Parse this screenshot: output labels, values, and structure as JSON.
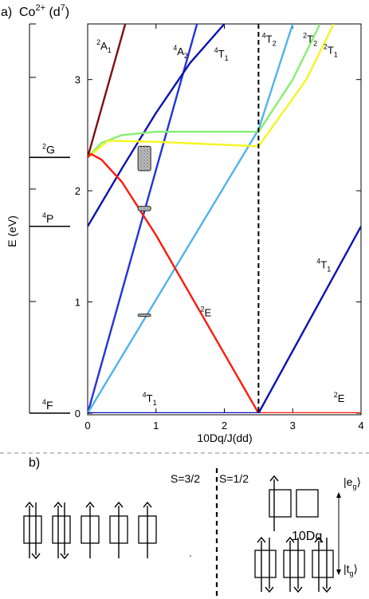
{
  "panel_a_label": "a)",
  "panel_a_title": "Co",
  "panel_a_title_sup": "2+",
  "panel_a_title_config": " (d",
  "panel_a_title_config_sup": "7",
  "panel_a_title_close": ")",
  "free_ion_levels": [
    {
      "name": "2G",
      "sup": "2",
      "base": "G",
      "energy": 2.3
    },
    {
      "name": "4P",
      "sup": "4",
      "base": "P",
      "energy": 1.68
    },
    {
      "name": "4F",
      "sup": "4",
      "base": "F",
      "energy": 0.0
    }
  ],
  "chart_data": {
    "type": "line",
    "title": "",
    "xlabel": "10Dq/J(dd)",
    "ylabel": "E (eV)",
    "xlim": [
      0,
      4
    ],
    "ylim": [
      0,
      3.5
    ],
    "xticks": [
      "0",
      "1",
      "2",
      "3",
      "4"
    ],
    "yticks": [
      "0",
      "1",
      "2",
      "3"
    ],
    "crossover_x": 2.5,
    "series": [
      {
        "name": "2A1",
        "color": "#7f0d0d",
        "x": [
          0,
          0.55
        ],
        "y": [
          2.3,
          3.5
        ]
      },
      {
        "name": "4A2",
        "color": "#2233dd",
        "x": [
          0,
          1.6
        ],
        "y": [
          0,
          3.5
        ]
      },
      {
        "name": "4T1 (upper)",
        "color": "#0a12b0",
        "x": [
          0,
          0.5,
          1.0,
          1.5,
          2.0
        ],
        "y": [
          1.68,
          2.2,
          2.7,
          3.15,
          3.5
        ]
      },
      {
        "name": "4T2",
        "color": "#4fb3ec",
        "x": [
          0,
          2.5,
          3.0
        ],
        "y": [
          0,
          2.55,
          3.5
        ]
      },
      {
        "name": "2T2",
        "color": "#88ee70",
        "x": [
          0,
          0.2,
          0.5,
          1.0,
          2.5,
          3.0,
          3.4
        ],
        "y": [
          2.3,
          2.43,
          2.5,
          2.53,
          2.53,
          3.0,
          3.5
        ]
      },
      {
        "name": "2T1",
        "color": "#f5f522",
        "x": [
          0,
          0.3,
          1.0,
          2.5,
          3.2,
          3.6
        ],
        "y": [
          2.3,
          2.45,
          2.44,
          2.4,
          3.0,
          3.5
        ]
      },
      {
        "name": "2E",
        "color": "#ff1a08",
        "x": [
          0,
          0.05,
          0.2,
          0.5,
          1.0,
          2.5,
          4.0
        ],
        "y": [
          2.3,
          2.33,
          2.28,
          2.08,
          1.6,
          0.0,
          0.0
        ]
      },
      {
        "name": "4T1 (ground)",
        "color": "#0a12b0",
        "x": [
          0,
          2.5,
          4.0
        ],
        "y": [
          0,
          0,
          1.68
        ]
      }
    ],
    "line_labels": [
      {
        "sup": "2",
        "base": "A",
        "sub": "1",
        "x": 0.13,
        "y": 3.27
      },
      {
        "sup": "4",
        "base": "A",
        "sub": "2",
        "x": 1.25,
        "y": 3.22
      },
      {
        "sup": "4",
        "base": "T",
        "sub": "1",
        "x": 1.85,
        "y": 3.2
      },
      {
        "sup": "4",
        "base": "T",
        "sub": "2",
        "x": 2.55,
        "y": 3.33
      },
      {
        "sup": "2",
        "base": "T",
        "sub": "2",
        "x": 3.15,
        "y": 3.33
      },
      {
        "sup": "2",
        "base": "T",
        "sub": "1",
        "x": 3.45,
        "y": 3.23
      },
      {
        "sup": "2",
        "base": "E",
        "sub": "",
        "x": 1.65,
        "y": 0.87
      },
      {
        "sup": "4",
        "base": "T",
        "sub": "1",
        "x": 0.8,
        "y": 0.1
      },
      {
        "sup": "4",
        "base": "T",
        "sub": "1",
        "x": 3.35,
        "y": 1.3
      },
      {
        "sup": "2",
        "base": "E",
        "sub": "",
        "x": 3.6,
        "y": 0.1
      }
    ],
    "experimental_markers": [
      {
        "x": 0.83,
        "y_min": 2.18,
        "y_max": 2.4
      },
      {
        "x": 0.83,
        "y_min": 1.82,
        "y_max": 1.86
      },
      {
        "x": 0.83,
        "y_min": 0.86,
        "y_max": 0.88
      }
    ]
  },
  "panel_b": {
    "label": "b)",
    "spin_high": "S=3/2",
    "spin_low": "S=1/2",
    "eg_label_main": "|e",
    "eg_label_sub": "g",
    "eg_label_end": "⟩",
    "tg_label_main": "|t",
    "tg_label_sub": "g",
    "tg_label_end": "⟩",
    "splitting_label": "10Dq"
  }
}
